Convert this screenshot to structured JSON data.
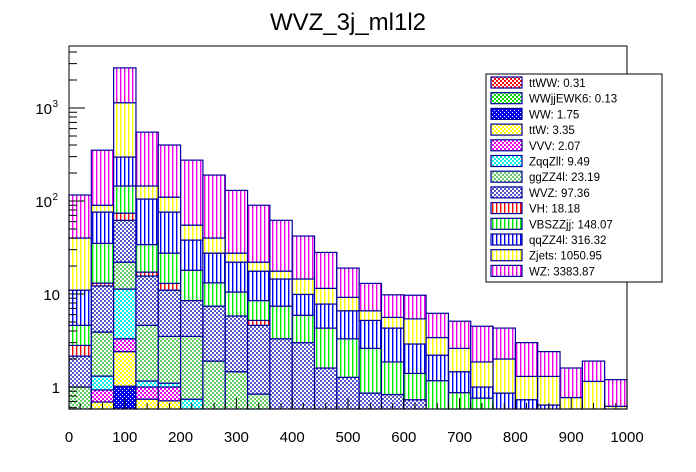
{
  "chart_data": {
    "type": "bar",
    "subtype": "stacked-histogram",
    "title": "WVZ_3j_ml1l2",
    "xlabel": "",
    "ylabel": "",
    "xlim": [
      0,
      1000
    ],
    "ylim": [
      0.58,
      4600
    ],
    "yscale": "log",
    "bin_edges": [
      0,
      40,
      80,
      120,
      160,
      200,
      240,
      280,
      320,
      360,
      400,
      440,
      480,
      520,
      560,
      600,
      640,
      680,
      720,
      760,
      800,
      840,
      880,
      920,
      960,
      1000
    ],
    "x_ticks": [
      "0",
      "100",
      "200",
      "300",
      "400",
      "500",
      "600",
      "700",
      "800",
      "900",
      "1000"
    ],
    "x_tick_values": [
      0,
      100,
      200,
      300,
      400,
      500,
      600,
      700,
      800,
      900,
      1000
    ],
    "y_ticks": [
      {
        "value": 1,
        "label": "1",
        "exp": ""
      },
      {
        "value": 10,
        "label": "10",
        "exp": ""
      },
      {
        "value": 100,
        "label": "10",
        "exp": "2"
      },
      {
        "value": 1000,
        "label": "10",
        "exp": "3"
      }
    ],
    "grid": false,
    "legend_position": "top-right",
    "stack_order_note": "series listed bottom-to-top; stacked_top = cumulative height at top of that layer per bin (null = no contribution)",
    "series": [
      {
        "name": "ttWW",
        "legend": "ttWW: 0.31",
        "color": "#ff0000",
        "fill": "check",
        "stacked_top": [
          null,
          null,
          null,
          null,
          null,
          null,
          null,
          null,
          null,
          null,
          null,
          null,
          null,
          null,
          null,
          null,
          null,
          null,
          null,
          null,
          null,
          null,
          null,
          null,
          null
        ]
      },
      {
        "name": "WWjjEWK6",
        "legend": "WWjjEWK6: 0.13",
        "color": "#00dd00",
        "fill": "check",
        "stacked_top": [
          null,
          null,
          null,
          null,
          null,
          null,
          null,
          null,
          null,
          null,
          null,
          null,
          null,
          null,
          null,
          null,
          null,
          null,
          null,
          null,
          null,
          null,
          null,
          null,
          null
        ]
      },
      {
        "name": "WW",
        "legend": "WW: 1.75",
        "color": "#0000ee",
        "fill": "check-dense",
        "stacked_top": [
          null,
          null,
          1.02,
          null,
          null,
          null,
          null,
          null,
          null,
          null,
          null,
          null,
          null,
          null,
          null,
          null,
          null,
          null,
          null,
          null,
          null,
          null,
          null,
          null,
          null
        ]
      },
      {
        "name": "ttW",
        "legend": "ttW: 3.35",
        "color": "#ffff00",
        "fill": "check",
        "stacked_top": [
          null,
          0.69,
          2.4,
          0.74,
          0.71,
          null,
          null,
          null,
          null,
          null,
          null,
          null,
          null,
          null,
          null,
          null,
          null,
          null,
          null,
          null,
          null,
          null,
          null,
          null,
          null
        ]
      },
      {
        "name": "VVV",
        "legend": "VVV: 2.07",
        "color": "#ee00ee",
        "fill": "check",
        "stacked_top": [
          null,
          0.93,
          3.3,
          1.0,
          1.0,
          0.58,
          null,
          null,
          null,
          null,
          null,
          null,
          null,
          null,
          null,
          null,
          null,
          null,
          null,
          null,
          null,
          null,
          null,
          null,
          null
        ]
      },
      {
        "name": "ZqqZll",
        "legend": "ZqqZll: 9.49",
        "color": "#00eeee",
        "fill": "check",
        "stacked_top": [
          null,
          1.31,
          11.3,
          1.16,
          1.1,
          0.74,
          null,
          null,
          null,
          null,
          null,
          null,
          null,
          null,
          null,
          null,
          null,
          null,
          null,
          null,
          null,
          null,
          null,
          null,
          null
        ]
      },
      {
        "name": "ggZZ4l",
        "legend": "ggZZ4l: 23.19",
        "color": "#66cc66",
        "fill": "check",
        "stacked_top": [
          1.0,
          3.9,
          22,
          4.6,
          3.5,
          3.5,
          1.9,
          1.46,
          0.84,
          0.58,
          null,
          null,
          null,
          null,
          null,
          null,
          null,
          null,
          null,
          null,
          null,
          null,
          null,
          null,
          null
        ]
      },
      {
        "name": "WVZ",
        "legend": "WVZ: 97.36",
        "color": "#5555cc",
        "fill": "check",
        "stacked_top": [
          2.15,
          12.2,
          62,
          15.6,
          11.0,
          8.5,
          7.4,
          5.8,
          4.6,
          3.3,
          3.0,
          1.6,
          1.27,
          0.86,
          0.83,
          0.73,
          null,
          null,
          null,
          null,
          null,
          null,
          null,
          null,
          null
        ]
      },
      {
        "name": "VH",
        "legend": "VH: 18.18",
        "color": "#ff0000",
        "fill": "vlines",
        "stacked_top": [
          2.8,
          13.1,
          74,
          17.2,
          13,
          8.5,
          7.4,
          5.8,
          5.2,
          3.3,
          3.0,
          1.6,
          1.27,
          0.86,
          0.83,
          0.73,
          null,
          null,
          null,
          null,
          null,
          null,
          null,
          null,
          null
        ]
      },
      {
        "name": "VBSZZjj",
        "legend": "VBSZZjj: 148.07",
        "color": "#00ee00",
        "fill": "vlines",
        "stacked_top": [
          4.6,
          35,
          145,
          34,
          27.5,
          18,
          13.2,
          10.5,
          8.5,
          7.4,
          5.9,
          4.3,
          3.3,
          2.6,
          1.86,
          1.4,
          1.17,
          0.87,
          0.76,
          0.58,
          null,
          null,
          null,
          null,
          null
        ]
      },
      {
        "name": "qqZZ4l",
        "legend": "qqZZ4l: 316.32",
        "color": "#0000ee",
        "fill": "vlines",
        "stacked_top": [
          11,
          76,
          297,
          105,
          76,
          38,
          27.5,
          22,
          17.6,
          14.5,
          9.9,
          7.8,
          6.6,
          5.2,
          4.3,
          2.9,
          2.2,
          1.46,
          1.0,
          0.86,
          0.73,
          0.64,
          null,
          null,
          null
        ]
      },
      {
        "name": "Zjets",
        "legend": "Zjets: 1050.95",
        "color": "#ffff00",
        "fill": "vlines",
        "stacked_top": [
          40,
          90,
          1140,
          145,
          110,
          55,
          40,
          27.5,
          22,
          17.6,
          14.5,
          11.5,
          9.2,
          6.6,
          5.6,
          5.4,
          3.4,
          2.6,
          1.86,
          2.0,
          1.3,
          1.3,
          0.77,
          1.15,
          0.62
        ]
      },
      {
        "name": "WZ",
        "legend": "WZ: 3383.87",
        "color": "#ee00ee",
        "fill": "vlines",
        "stacked_top": [
          116,
          352,
          2700,
          550,
          400,
          275,
          190,
          130,
          90,
          62,
          42,
          28,
          19,
          13,
          9.8,
          9.7,
          6.2,
          5.1,
          4.5,
          4.3,
          3.0,
          2.4,
          1.6,
          1.9,
          1.2
        ]
      }
    ]
  }
}
